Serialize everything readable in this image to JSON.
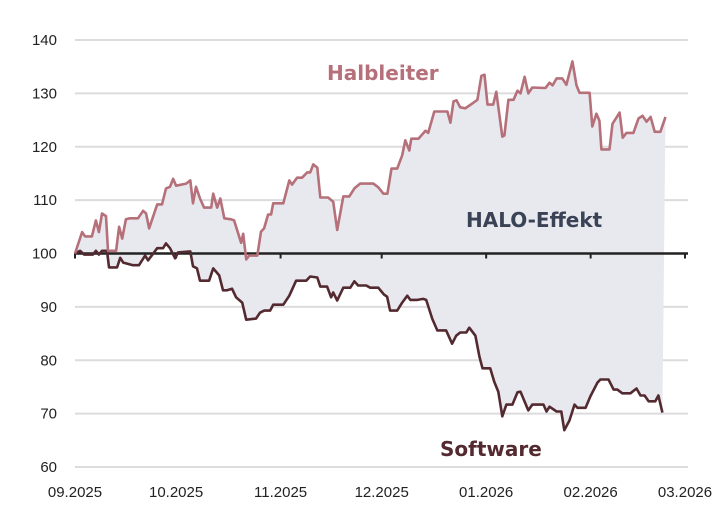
{
  "chart_data": {
    "type": "line",
    "title": "",
    "xlabel": "",
    "ylabel": "",
    "x_unit": "days since 01.09.2025",
    "ylim": [
      60,
      140
    ],
    "xlim": [
      0,
      181
    ],
    "grid": true,
    "baseline": 100,
    "yticks": [
      60,
      70,
      80,
      90,
      100,
      110,
      120,
      130,
      140
    ],
    "xticks": [
      {
        "label": "09.2025",
        "x": 0
      },
      {
        "label": "10.2025",
        "x": 30
      },
      {
        "label": "11.2025",
        "x": 61
      },
      {
        "label": "12.2025",
        "x": 91
      },
      {
        "label": "01.2026",
        "x": 122
      },
      {
        "label": "02.2026",
        "x": 153
      },
      {
        "label": "03.2026",
        "x": 181
      }
    ],
    "fill_label": "HALO-Effekt",
    "colors": {
      "halbleiter": "#b5707a",
      "software": "#532a30",
      "fill": "#e8e9ef",
      "grid": "#dcdcde",
      "baseline": "#222222",
      "fill_label": "#3a4256"
    },
    "series": [
      {
        "name": "Halbleiter",
        "points": [
          [
            0,
            100
          ],
          [
            2.1,
            104
          ],
          [
            3,
            103.2
          ],
          [
            5,
            103.2
          ],
          [
            6.2,
            106.2
          ],
          [
            7.1,
            104
          ],
          [
            8,
            107.5
          ],
          [
            9.2,
            107
          ],
          [
            9.8,
            100.5
          ],
          [
            12.2,
            100.5
          ],
          [
            13.1,
            105
          ],
          [
            14,
            102.8
          ],
          [
            15.1,
            106.4
          ],
          [
            16.3,
            106.6
          ],
          [
            18.7,
            106.6
          ],
          [
            20.2,
            108
          ],
          [
            21.1,
            107.5
          ],
          [
            22,
            104.7
          ],
          [
            24.4,
            109.2
          ],
          [
            25.8,
            109.2
          ],
          [
            27,
            112.2
          ],
          [
            28.2,
            112.5
          ],
          [
            29.1,
            114
          ],
          [
            30,
            112.7
          ],
          [
            33,
            113.1
          ],
          [
            34.2,
            113.7
          ],
          [
            35,
            109.4
          ],
          [
            35.9,
            112.5
          ],
          [
            37.1,
            110.3
          ],
          [
            38.3,
            108.6
          ],
          [
            40.4,
            108.6
          ],
          [
            41,
            111.2
          ],
          [
            42.2,
            108.6
          ],
          [
            43.1,
            110.3
          ],
          [
            44.3,
            106.6
          ],
          [
            46.3,
            106.4
          ],
          [
            47.2,
            106.2
          ],
          [
            49.3,
            102
          ],
          [
            49.9,
            103.7
          ],
          [
            50.8,
            98.9
          ],
          [
            51.7,
            99.6
          ],
          [
            54.1,
            99.6
          ],
          [
            55.2,
            104.1
          ],
          [
            56.1,
            104.7
          ],
          [
            57.3,
            107.3
          ],
          [
            58.2,
            107.3
          ],
          [
            58.8,
            109.4
          ],
          [
            61.8,
            109.4
          ],
          [
            63.6,
            113.7
          ],
          [
            64.4,
            112.9
          ],
          [
            65.9,
            114.2
          ],
          [
            67.4,
            114.2
          ],
          [
            68.9,
            115.2
          ],
          [
            69.8,
            115.2
          ],
          [
            70.7,
            116.7
          ],
          [
            71.9,
            116.1
          ],
          [
            72.8,
            110.5
          ],
          [
            75.1,
            110.5
          ],
          [
            76.6,
            109.7
          ],
          [
            77.8,
            104.4
          ],
          [
            79.6,
            110.7
          ],
          [
            81.4,
            110.7
          ],
          [
            82.9,
            112.2
          ],
          [
            84.6,
            113.1
          ],
          [
            88.5,
            113.1
          ],
          [
            90,
            112.4
          ],
          [
            91.5,
            111.2
          ],
          [
            92.7,
            111.2
          ],
          [
            93.9,
            115.9
          ],
          [
            95.6,
            115.9
          ],
          [
            97.1,
            118.4
          ],
          [
            98,
            121.2
          ],
          [
            99.2,
            119.3
          ],
          [
            99.8,
            121.5
          ],
          [
            101.9,
            121.5
          ],
          [
            104,
            123
          ],
          [
            104.8,
            122.6
          ],
          [
            106.6,
            126.6
          ],
          [
            110.5,
            126.6
          ],
          [
            111.4,
            124.5
          ],
          [
            112.3,
            128.5
          ],
          [
            113.2,
            128.7
          ],
          [
            114.3,
            127.4
          ],
          [
            115.8,
            127.2
          ],
          [
            117.9,
            128.1
          ],
          [
            119.4,
            128.8
          ],
          [
            120.6,
            133.3
          ],
          [
            121.5,
            133.5
          ],
          [
            122.4,
            127.9
          ],
          [
            124.1,
            127.9
          ],
          [
            125,
            130.3
          ],
          [
            126.8,
            121.9
          ],
          [
            127.4,
            122.1
          ],
          [
            128.6,
            128.8
          ],
          [
            130.1,
            128.8
          ],
          [
            131.3,
            130.5
          ],
          [
            132.2,
            130
          ],
          [
            133.4,
            133.1
          ],
          [
            134.5,
            130
          ],
          [
            135.7,
            131.1
          ],
          [
            139.6,
            131
          ],
          [
            140.8,
            132
          ],
          [
            141.7,
            131.5
          ],
          [
            142.9,
            132.8
          ],
          [
            144.6,
            132.8
          ],
          [
            145.8,
            131.6
          ],
          [
            147.6,
            136
          ],
          [
            148.8,
            131.5
          ],
          [
            149.7,
            130.1
          ],
          [
            152.7,
            130.1
          ],
          [
            153.5,
            123.8
          ],
          [
            154.7,
            126.2
          ],
          [
            155.6,
            124.9
          ],
          [
            156.2,
            119.5
          ],
          [
            158.6,
            119.5
          ],
          [
            159.5,
            124.3
          ],
          [
            161.6,
            126.4
          ],
          [
            162.5,
            121.7
          ],
          [
            163.6,
            122.6
          ],
          [
            165.7,
            122.6
          ],
          [
            167.2,
            125.3
          ],
          [
            168.4,
            125.8
          ],
          [
            169.6,
            124.7
          ],
          [
            170.8,
            125.6
          ],
          [
            172,
            122.8
          ],
          [
            173.7,
            122.8
          ],
          [
            175.2,
            125.6
          ]
        ]
      },
      {
        "name": "Software",
        "points": [
          [
            0,
            100
          ],
          [
            1.5,
            100.5
          ],
          [
            2.7,
            99.8
          ],
          [
            5.3,
            99.8
          ],
          [
            6.2,
            100.5
          ],
          [
            7.1,
            99.8
          ],
          [
            8,
            100.5
          ],
          [
            9.5,
            100.5
          ],
          [
            10.1,
            97.4
          ],
          [
            12.5,
            97.4
          ],
          [
            13.4,
            99.2
          ],
          [
            14.3,
            98.3
          ],
          [
            17.2,
            97.8
          ],
          [
            19,
            97.8
          ],
          [
            20.8,
            99.6
          ],
          [
            21.7,
            98.7
          ],
          [
            24.4,
            101
          ],
          [
            26.1,
            101
          ],
          [
            27,
            101.9
          ],
          [
            28.2,
            101
          ],
          [
            29.7,
            99.1
          ],
          [
            30.6,
            100.2
          ],
          [
            34.2,
            100.4
          ],
          [
            35,
            97.6
          ],
          [
            36.2,
            97.2
          ],
          [
            37.1,
            94.9
          ],
          [
            39.8,
            94.9
          ],
          [
            41,
            97.2
          ],
          [
            42.8,
            95.9
          ],
          [
            43.9,
            93.1
          ],
          [
            45.1,
            93.1
          ],
          [
            46.6,
            93.4
          ],
          [
            47.8,
            91.8
          ],
          [
            49.6,
            90.8
          ],
          [
            50.8,
            87.6
          ],
          [
            53.7,
            87.8
          ],
          [
            54.9,
            88.9
          ],
          [
            56.1,
            89.3
          ],
          [
            57.9,
            89.3
          ],
          [
            58.8,
            90.4
          ],
          [
            61.8,
            90.4
          ],
          [
            63.6,
            92.1
          ],
          [
            65.6,
            94.9
          ],
          [
            68.6,
            94.9
          ],
          [
            69.8,
            95.7
          ],
          [
            71.9,
            95.5
          ],
          [
            72.8,
            93.8
          ],
          [
            74.8,
            93.8
          ],
          [
            76,
            91.8
          ],
          [
            76.6,
            92.7
          ],
          [
            77.8,
            91.2
          ],
          [
            79.6,
            93.6
          ],
          [
            81.7,
            93.6
          ],
          [
            82.9,
            94.8
          ],
          [
            84,
            94
          ],
          [
            86.4,
            94
          ],
          [
            87.6,
            93.6
          ],
          [
            90,
            93.6
          ],
          [
            91.7,
            92.3
          ],
          [
            92.6,
            91.9
          ],
          [
            93.5,
            89.3
          ],
          [
            95.6,
            89.3
          ],
          [
            97.1,
            90.8
          ],
          [
            98.6,
            92.1
          ],
          [
            99.5,
            91.3
          ],
          [
            101.6,
            91.3
          ],
          [
            103.3,
            91.5
          ],
          [
            104.2,
            91.3
          ],
          [
            106,
            87.8
          ],
          [
            107.5,
            85.6
          ],
          [
            110.1,
            85.6
          ],
          [
            111.9,
            83.1
          ],
          [
            113.1,
            84.6
          ],
          [
            114.3,
            85.2
          ],
          [
            116.1,
            85.2
          ],
          [
            117,
            86.1
          ],
          [
            118.8,
            84.6
          ],
          [
            120,
            80.7
          ],
          [
            120.9,
            78.5
          ],
          [
            123.2,
            78.5
          ],
          [
            124.4,
            76
          ],
          [
            125.6,
            74.1
          ],
          [
            126.8,
            69.5
          ],
          [
            128,
            71.7
          ],
          [
            129.8,
            71.7
          ],
          [
            131.3,
            74
          ],
          [
            132.2,
            74.1
          ],
          [
            134.5,
            70.6
          ],
          [
            135.7,
            71.7
          ],
          [
            139,
            71.7
          ],
          [
            139.9,
            70.4
          ],
          [
            140.8,
            71.3
          ],
          [
            142.9,
            70.4
          ],
          [
            144.3,
            70.4
          ],
          [
            145.2,
            66.9
          ],
          [
            146.7,
            68.7
          ],
          [
            148.2,
            71.7
          ],
          [
            149.1,
            71.1
          ],
          [
            151.5,
            71.1
          ],
          [
            152.9,
            73.2
          ],
          [
            155,
            75.8
          ],
          [
            155.9,
            76.4
          ],
          [
            158.3,
            76.4
          ],
          [
            159.8,
            74.5
          ],
          [
            160.9,
            74.5
          ],
          [
            162.4,
            73.8
          ],
          [
            164.8,
            73.8
          ],
          [
            166.6,
            74.7
          ],
          [
            167.8,
            73.4
          ],
          [
            169,
            73.4
          ],
          [
            170.2,
            72.3
          ],
          [
            172.2,
            72.3
          ],
          [
            173.1,
            73.4
          ],
          [
            174.3,
            70.2
          ]
        ]
      }
    ]
  }
}
